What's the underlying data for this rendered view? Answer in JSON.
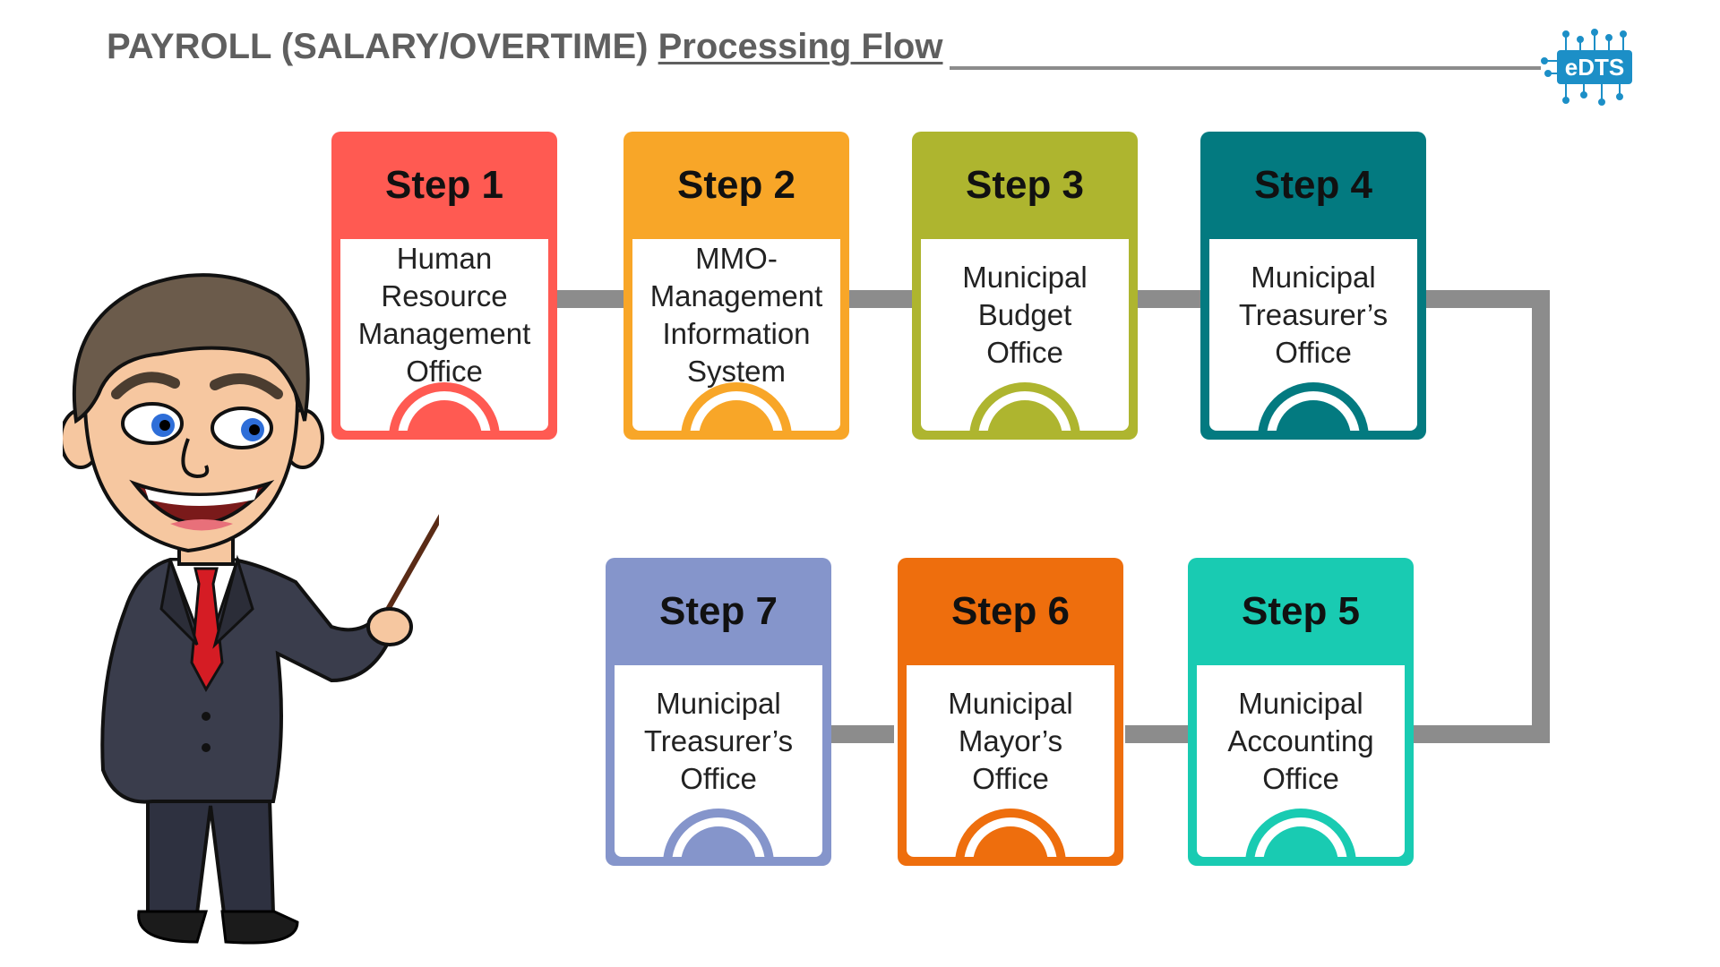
{
  "title": {
    "main": "PAYROLL (SALARY/OVERTIME)",
    "underlined": "Processing Flow"
  },
  "logo": {
    "text": "eDTS",
    "icon": "circuit-logo-icon"
  },
  "colors": {
    "connector": "#8c8c8c",
    "title_text": "#5f5f5f",
    "logo_blue": "#1c8fc7"
  },
  "steps": [
    {
      "label": "Step 1",
      "color": "#ff5a52",
      "lines": [
        "Human",
        "Resource",
        "Management",
        "Office"
      ]
    },
    {
      "label": "Step 2",
      "color": "#f8a628",
      "lines": [
        "MMO-",
        "Management",
        "Information",
        "System"
      ]
    },
    {
      "label": "Step 3",
      "color": "#aeb52f",
      "lines": [
        "Municipal",
        "Budget",
        "Office"
      ]
    },
    {
      "label": "Step 4",
      "color": "#037a80",
      "lines": [
        "Municipal",
        "Treasurer’s",
        "Office"
      ]
    },
    {
      "label": "Step 5",
      "color": "#19cbb2",
      "lines": [
        "Municipal",
        "Accounting",
        "Office"
      ]
    },
    {
      "label": "Step 6",
      "color": "#ee6e0d",
      "lines": [
        "Municipal",
        "Mayor’s",
        "Office"
      ]
    },
    {
      "label": "Step 7",
      "color": "#8595cb",
      "lines": [
        "Municipal",
        "Treasurer’s",
        "Office"
      ]
    }
  ],
  "illustration": {
    "icon": "presenter-businessman-icon"
  }
}
